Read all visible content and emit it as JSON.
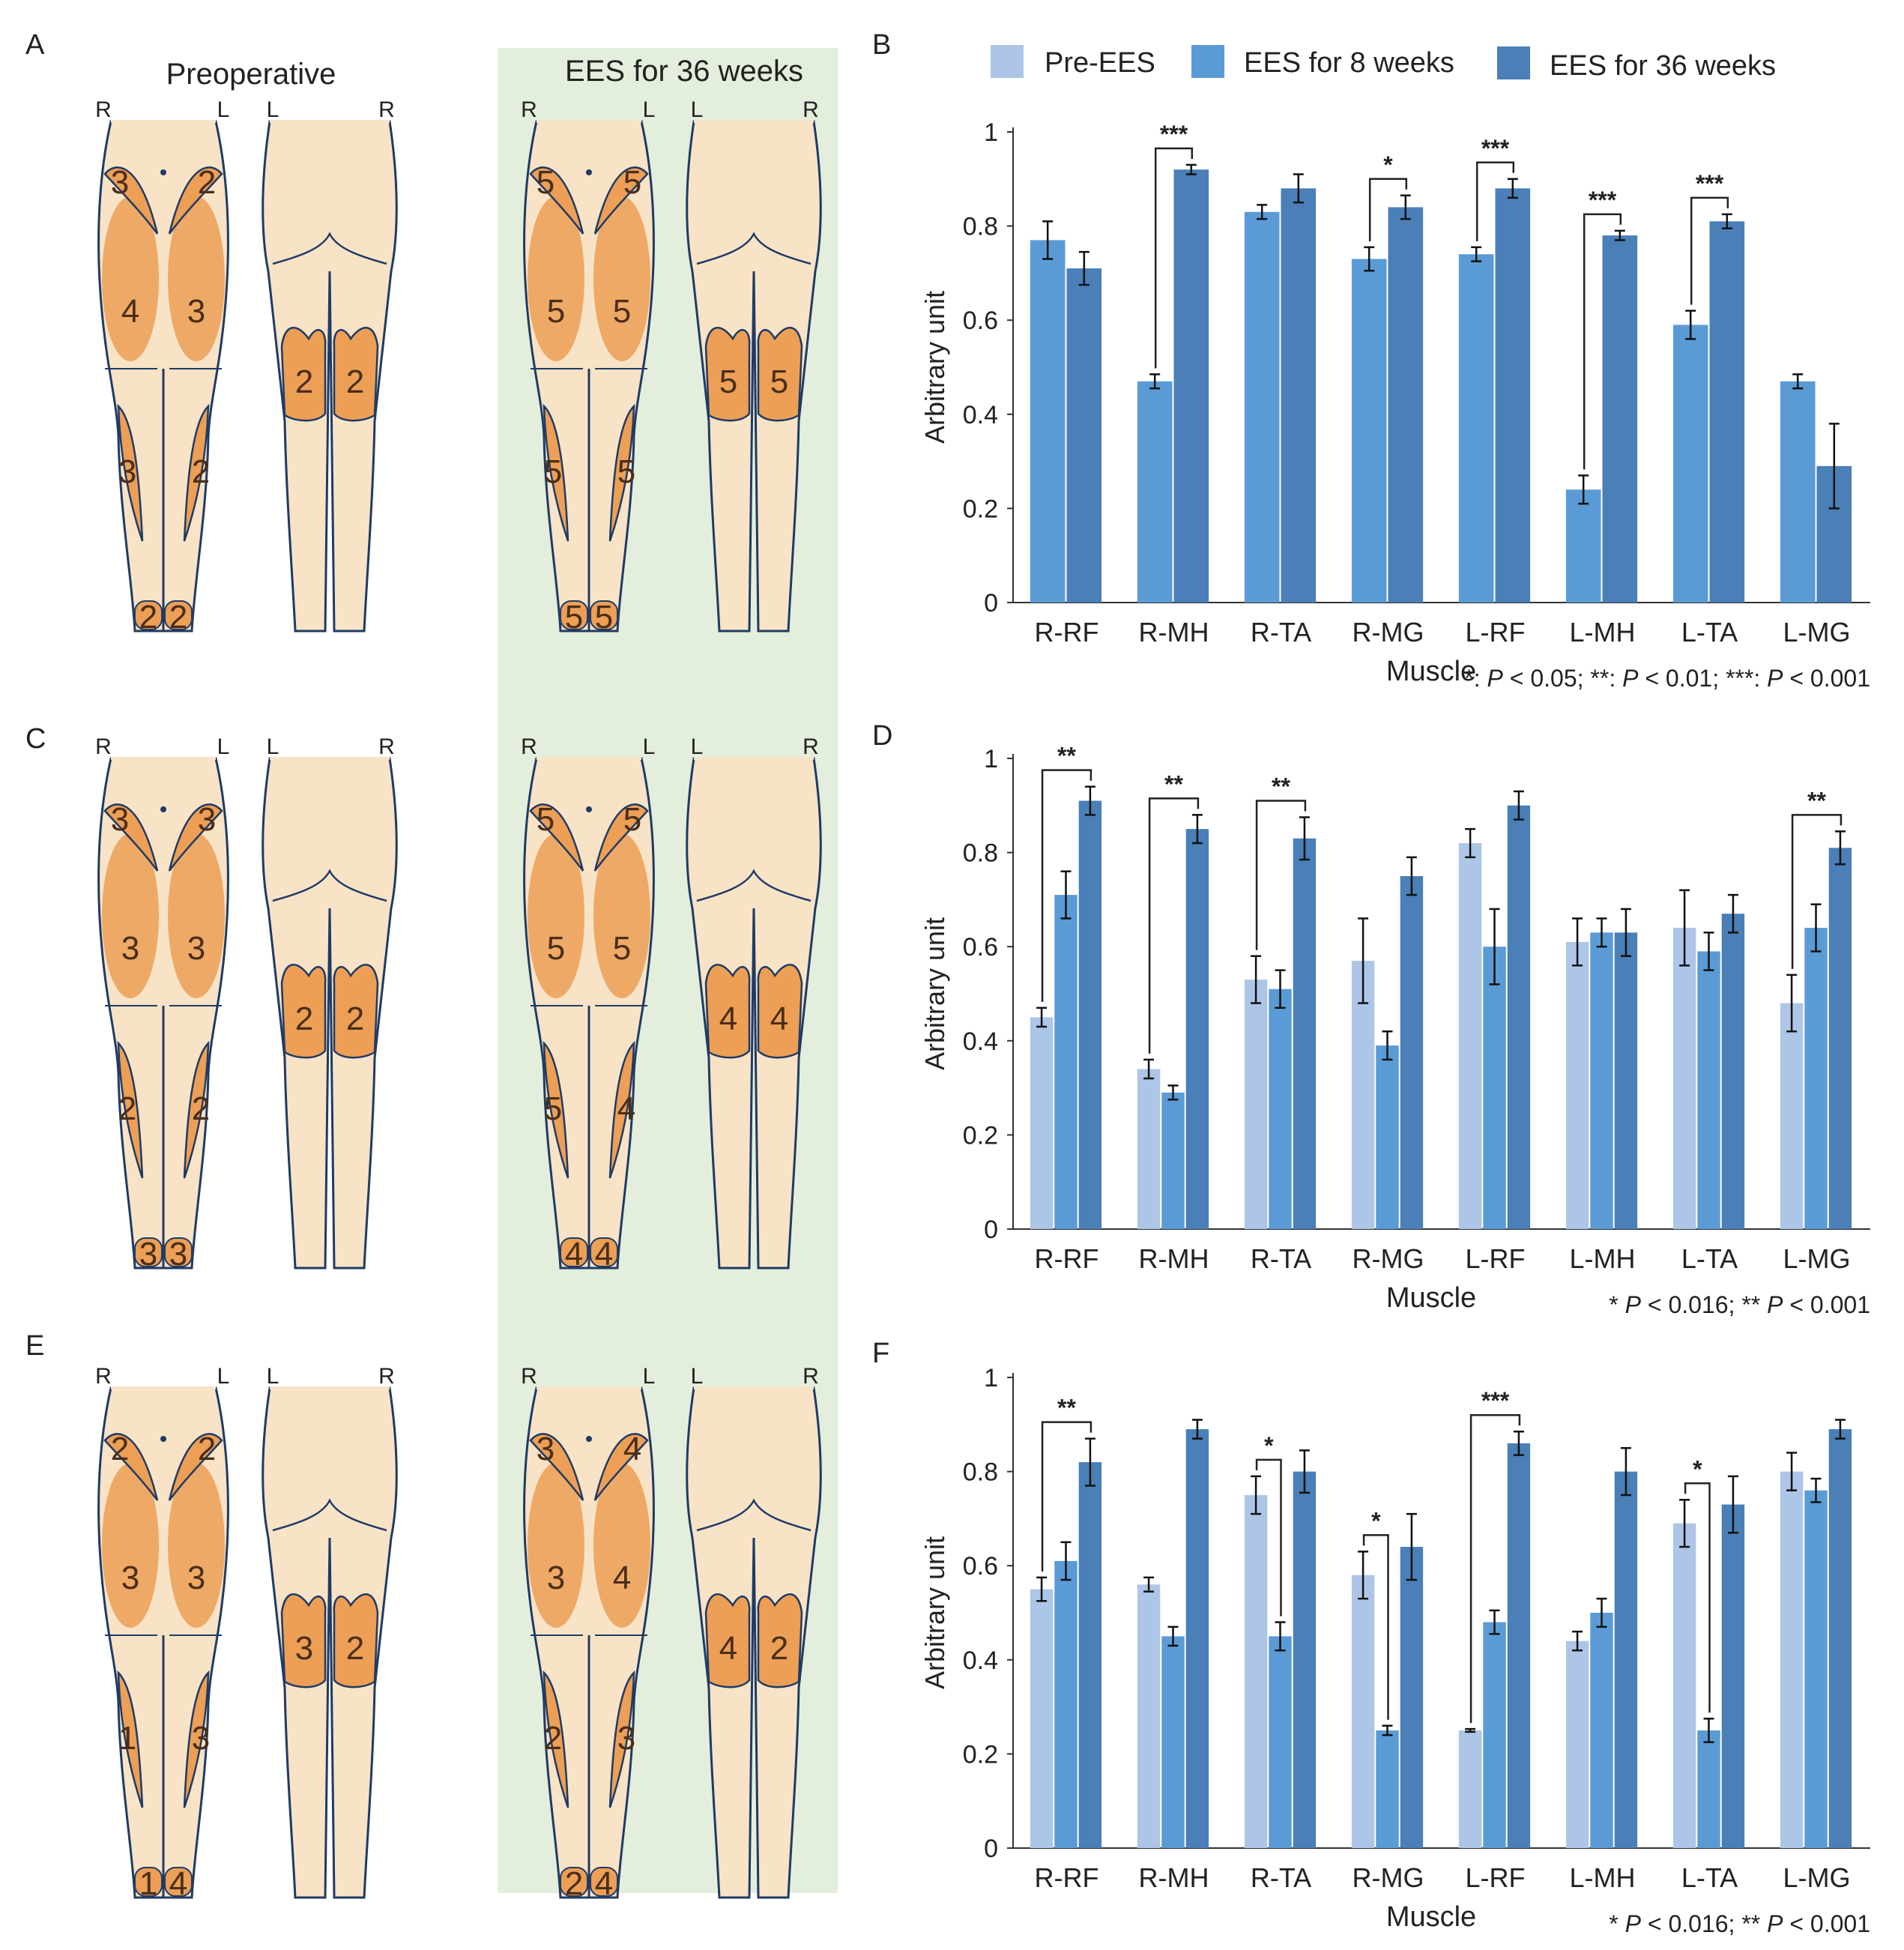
{
  "figure": {
    "background_panel_color": "#e3efdc",
    "colors": {
      "pre": "#adc6e7",
      "w8": "#5b9bd5",
      "w36": "#4a7fb7",
      "skin": "#f8e3c6",
      "muscle": "#ec9f55",
      "outline": "#1f3b66"
    },
    "labels": {
      "A": "A",
      "B": "B",
      "C": "C",
      "D": "D",
      "E": "E",
      "F": "F",
      "preoperative": "Preoperative",
      "ees36": "EES for 36 weeks",
      "R": "R",
      "L": "L"
    },
    "legend": {
      "pre": "Pre-EES",
      "w8": "EES for 8 weeks",
      "w36": "EES for 36 weeks"
    },
    "diagrams": [
      {
        "row": "A",
        "pre": {
          "thighTopR": "3",
          "thighTopL": "2",
          "thighR": "4",
          "thighL": "3",
          "shinR": "3",
          "shinL": "2",
          "footR": "2",
          "footL": "2",
          "calfL": "2",
          "calfR": "2"
        },
        "post": {
          "thighTopR": "5",
          "thighTopL": "5",
          "thighR": "5",
          "thighL": "5",
          "shinR": "5",
          "shinL": "5",
          "footR": "5",
          "footL": "5",
          "calfL": "5",
          "calfR": "5"
        }
      },
      {
        "row": "C",
        "pre": {
          "thighTopR": "3",
          "thighTopL": "3",
          "thighR": "3",
          "thighL": "3",
          "shinR": "2",
          "shinL": "2",
          "footR": "3",
          "footL": "3",
          "calfL": "2",
          "calfR": "2"
        },
        "post": {
          "thighTopR": "5",
          "thighTopL": "5",
          "thighR": "5",
          "thighL": "5",
          "shinR": "5",
          "shinL": "4",
          "footR": "4",
          "footL": "4",
          "calfL": "4",
          "calfR": "4"
        }
      },
      {
        "row": "E",
        "pre": {
          "thighTopR": "2",
          "thighTopL": "2",
          "thighR": "3",
          "thighL": "3",
          "shinR": "1",
          "shinL": "3",
          "footR": "1",
          "footL": "4",
          "calfL": "3",
          "calfR": "2"
        },
        "post": {
          "thighTopR": "3",
          "thighTopL": "4",
          "thighR": "3",
          "thighL": "4",
          "shinR": "2",
          "shinL": "3",
          "footR": "2",
          "footL": "4",
          "calfL": "4",
          "calfR": "2"
        }
      }
    ]
  },
  "chart_data": [
    {
      "panel": "B",
      "type": "bar",
      "title": "",
      "xlabel": "Muscle",
      "ylabel": "Arbitrary unit",
      "ylim": [
        0,
        1
      ],
      "yticks": [
        0,
        0.2,
        0.4,
        0.6,
        0.8,
        1
      ],
      "ytick_labels": [
        "0",
        "0.2",
        "0.4",
        "0.6",
        "0.8",
        "1"
      ],
      "categories": [
        "R-RF",
        "R-MH",
        "R-TA",
        "R-MG",
        "L-RF",
        "L-MH",
        "L-TA",
        "L-MG"
      ],
      "series": [
        {
          "name": "EES for 8 weeks",
          "key": "w8",
          "values": [
            0.77,
            0.47,
            0.83,
            0.73,
            0.74,
            0.24,
            0.59,
            0.47
          ],
          "errors": [
            0.04,
            0.015,
            0.015,
            0.025,
            0.015,
            0.03,
            0.03,
            0.015
          ]
        },
        {
          "name": "EES for 36 weeks",
          "key": "w36",
          "values": [
            0.71,
            0.92,
            0.88,
            0.84,
            0.88,
            0.78,
            0.81,
            0.29
          ],
          "errors": [
            0.035,
            0.01,
            0.03,
            0.025,
            0.02,
            0.01,
            0.015,
            0.09
          ]
        }
      ],
      "significance": [
        {
          "category": "R-MH",
          "from": "w8",
          "to": "w36",
          "label": "***"
        },
        {
          "category": "R-MG",
          "from": "w8",
          "to": "w36",
          "label": "*"
        },
        {
          "category": "L-RF",
          "from": "w8",
          "to": "w36",
          "label": "***"
        },
        {
          "category": "L-MH",
          "from": "w8",
          "to": "w36",
          "label": "***"
        },
        {
          "category": "L-TA",
          "from": "w8",
          "to": "w36",
          "label": "***"
        }
      ],
      "note_parts": [
        "*:  ",
        "P",
        " < 0.05; **: ",
        "P",
        " < 0.01; ***: ",
        "P",
        " < 0.001"
      ]
    },
    {
      "panel": "D",
      "type": "bar",
      "title": "",
      "xlabel": "Muscle",
      "ylabel": "Arbitrary unit",
      "ylim": [
        0,
        1
      ],
      "yticks": [
        0,
        0.2,
        0.4,
        0.6,
        0.8,
        1
      ],
      "ytick_labels": [
        "0",
        "0.2",
        "0.4",
        "0.6",
        "0.8",
        "1"
      ],
      "categories": [
        "R-RF",
        "R-MH",
        "R-TA",
        "R-MG",
        "L-RF",
        "L-MH",
        "L-TA",
        "L-MG"
      ],
      "series": [
        {
          "name": "Pre-EES",
          "key": "pre",
          "values": [
            0.45,
            0.34,
            0.53,
            0.57,
            0.82,
            0.61,
            0.64,
            0.48
          ],
          "errors": [
            0.02,
            0.02,
            0.05,
            0.09,
            0.03,
            0.05,
            0.08,
            0.06
          ]
        },
        {
          "name": "EES for 8 weeks",
          "key": "w8",
          "values": [
            0.71,
            0.29,
            0.51,
            0.39,
            0.6,
            0.63,
            0.59,
            0.64
          ],
          "errors": [
            0.05,
            0.015,
            0.04,
            0.03,
            0.08,
            0.03,
            0.04,
            0.05
          ]
        },
        {
          "name": "EES for 36 weeks",
          "key": "w36",
          "values": [
            0.91,
            0.85,
            0.83,
            0.75,
            0.9,
            0.63,
            0.67,
            0.81
          ],
          "errors": [
            0.03,
            0.03,
            0.045,
            0.04,
            0.03,
            0.05,
            0.04,
            0.035
          ]
        }
      ],
      "significance": [
        {
          "category": "R-RF",
          "from": "pre",
          "to": "w36",
          "label": "**"
        },
        {
          "category": "R-MH",
          "from": "pre",
          "to": "w36",
          "label": "**"
        },
        {
          "category": "R-TA",
          "from": "pre",
          "to": "w36",
          "label": "**"
        },
        {
          "category": "L-MG",
          "from": "pre",
          "to": "w36",
          "label": "**"
        }
      ],
      "note_parts": [
        "*   ",
        "P",
        " < 0.016; ** ",
        "P",
        " < 0.001"
      ]
    },
    {
      "panel": "F",
      "type": "bar",
      "title": "",
      "xlabel": "Muscle",
      "ylabel": "Arbitrary unit",
      "ylim": [
        0,
        1
      ],
      "yticks": [
        0,
        0.2,
        0.4,
        0.6,
        0.8,
        1
      ],
      "ytick_labels": [
        "0",
        "0.2",
        "0.4",
        "0.6",
        "0.8",
        "1"
      ],
      "categories": [
        "R-RF",
        "R-MH",
        "R-TA",
        "R-MG",
        "L-RF",
        "L-MH",
        "L-TA",
        "L-MG"
      ],
      "series": [
        {
          "name": "Pre-EES",
          "key": "pre",
          "values": [
            0.55,
            0.56,
            0.75,
            0.58,
            0.25,
            0.44,
            0.69,
            0.8
          ],
          "errors": [
            0.025,
            0.015,
            0.04,
            0.05,
            0.003,
            0.02,
            0.05,
            0.04
          ]
        },
        {
          "name": "EES for 8 weeks",
          "key": "w8",
          "values": [
            0.61,
            0.45,
            0.45,
            0.25,
            0.48,
            0.5,
            0.25,
            0.76
          ],
          "errors": [
            0.04,
            0.02,
            0.03,
            0.01,
            0.025,
            0.03,
            0.025,
            0.025
          ]
        },
        {
          "name": "EES for 36 weeks",
          "key": "w36",
          "values": [
            0.82,
            0.89,
            0.8,
            0.64,
            0.86,
            0.8,
            0.73,
            0.89
          ],
          "errors": [
            0.05,
            0.02,
            0.045,
            0.07,
            0.025,
            0.05,
            0.06,
            0.02
          ]
        }
      ],
      "significance": [
        {
          "category": "R-RF",
          "from": "pre",
          "to": "w36",
          "label": "**"
        },
        {
          "category": "R-TA",
          "from": "pre",
          "to": "w8",
          "label": "*"
        },
        {
          "category": "R-MG",
          "from": "pre",
          "to": "w8",
          "label": "*"
        },
        {
          "category": "L-RF",
          "from": "pre",
          "to": "w36",
          "label": "***"
        },
        {
          "category": "L-TA",
          "from": "pre",
          "to": "w8",
          "label": "*"
        }
      ],
      "note_parts": [
        "*   ",
        "P",
        " < 0.016; ** ",
        "P",
        " < 0.001"
      ]
    }
  ]
}
